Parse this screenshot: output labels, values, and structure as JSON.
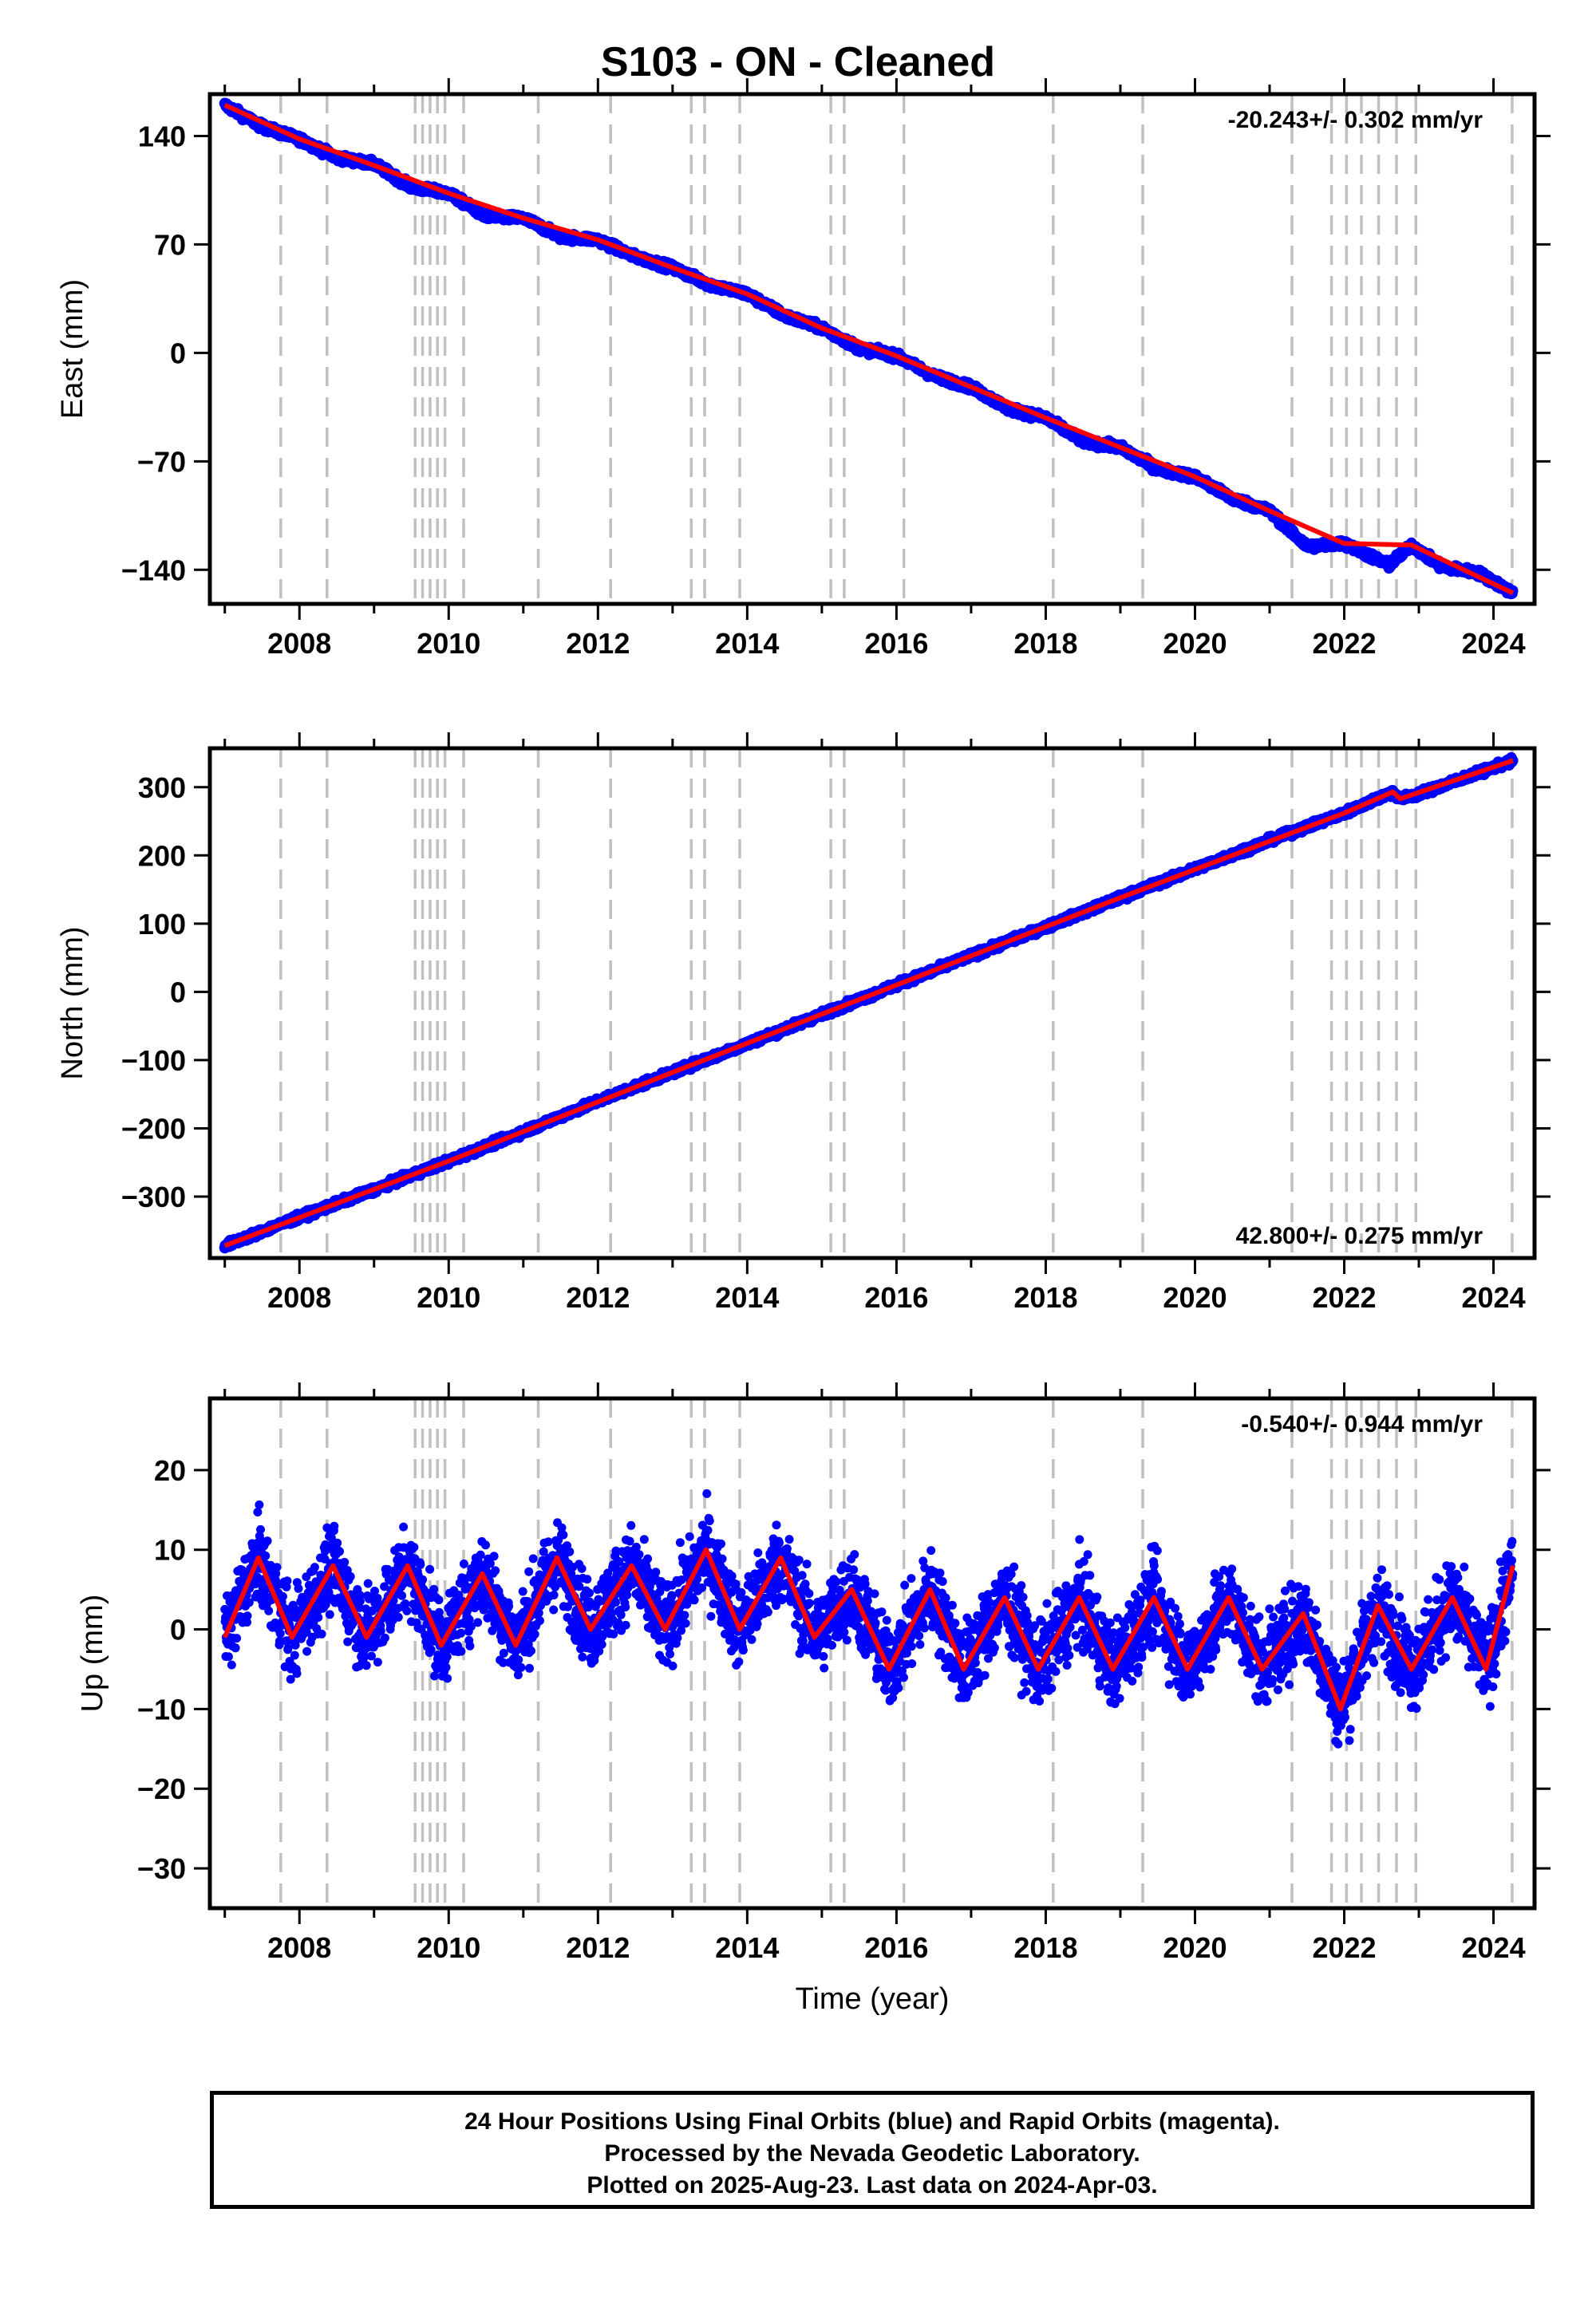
{
  "title": "S103  - ON - Cleaned",
  "footer": {
    "line1": "24 Hour Positions Using Final Orbits (blue) and Rapid Orbits (magenta).",
    "line2": "Processed by the Nevada Geodetic Laboratory.",
    "line3": "Plotted on 2025-Aug-23. Last data on 2024-Apr-03."
  },
  "colors": {
    "data": "#0000ff",
    "model": "#ff0000",
    "events": "#c0c0c0",
    "frame": "#000000"
  },
  "chart_data": [
    {
      "type": "scatter",
      "ylabel": "East (mm)",
      "rate_text": "-20.243+/- 0.302 mm/yr",
      "rate_position": "top-right",
      "xlim": [
        2006.8,
        2024.55
      ],
      "ylim": [
        -162,
        167
      ],
      "yticks": [
        -140,
        -70,
        0,
        70,
        140
      ],
      "yticklabels": [
        "−140",
        "−70",
        "0",
        "70",
        "140"
      ],
      "xticks": [
        2008,
        2010,
        2012,
        2014,
        2016,
        2018,
        2020,
        2022,
        2024
      ],
      "xticklabels": [
        "2008",
        "2010",
        "2012",
        "2014",
        "2016",
        "2018",
        "2020",
        "2022",
        "2024"
      ],
      "series": [
        {
          "values": [
            [
              2007.0,
              160
            ],
            [
              2007.5,
              146
            ],
            [
              2008.0,
              138
            ],
            [
              2008.5,
              126
            ],
            [
              2009.0,
              122
            ],
            [
              2009.5,
              107
            ],
            [
              2010.0,
              103
            ],
            [
              2010.5,
              88
            ],
            [
              2011.0,
              87
            ],
            [
              2011.5,
              75
            ],
            [
              2012.0,
              73
            ],
            [
              2012.5,
              62
            ],
            [
              2013.0,
              55
            ],
            [
              2013.5,
              44
            ],
            [
              2014.0,
              38
            ],
            [
              2014.5,
              24
            ],
            [
              2015.0,
              16
            ],
            [
              2015.5,
              3
            ],
            [
              2016.0,
              -2
            ],
            [
              2016.5,
              -15
            ],
            [
              2017.0,
              -22
            ],
            [
              2017.5,
              -36
            ],
            [
              2018.0,
              -42
            ],
            [
              2018.5,
              -57
            ],
            [
              2019.0,
              -61
            ],
            [
              2019.5,
              -75
            ],
            [
              2020.0,
              -80
            ],
            [
              2020.5,
              -94
            ],
            [
              2021.0,
              -102
            ],
            [
              2021.5,
              -125
            ],
            [
              2022.0,
              -123
            ],
            [
              2022.6,
              -137
            ],
            [
              2022.9,
              -124
            ],
            [
              2023.3,
              -138
            ],
            [
              2023.8,
              -142
            ],
            [
              2024.26,
              -155
            ]
          ]
        },
        {
          "values": [
            [
              2007.0,
              160
            ],
            [
              2008.0,
              138
            ],
            [
              2009.0,
              121
            ],
            [
              2010.0,
              103
            ],
            [
              2011.0,
              87
            ],
            [
              2012.0,
              73
            ],
            [
              2013.0,
              55
            ],
            [
              2014.0,
              38
            ],
            [
              2015.0,
              16
            ],
            [
              2016.0,
              -2
            ],
            [
              2017.0,
              -22
            ],
            [
              2018.0,
              -42
            ],
            [
              2019.0,
              -61
            ],
            [
              2020.0,
              -80
            ],
            [
              2021.0,
              -102
            ],
            [
              2022.0,
              -123
            ],
            [
              2022.9,
              -124
            ],
            [
              2024.26,
              -155
            ]
          ]
        }
      ]
    },
    {
      "type": "scatter",
      "ylabel": "North (mm)",
      "rate_text": "42.800+/- 0.275 mm/yr",
      "rate_position": "bottom-right",
      "xlim": [
        2006.8,
        2024.55
      ],
      "ylim": [
        -390,
        357
      ],
      "yticks": [
        -300,
        -200,
        -100,
        0,
        100,
        200,
        300
      ],
      "yticklabels": [
        "−300",
        "−200",
        "−100",
        "0",
        "100",
        "200",
        "300"
      ],
      "xticks": [
        2008,
        2010,
        2012,
        2014,
        2016,
        2018,
        2020,
        2022,
        2024
      ],
      "xticklabels": [
        "2008",
        "2010",
        "2012",
        "2014",
        "2016",
        "2018",
        "2020",
        "2022",
        "2024"
      ],
      "series": [
        {
          "values": [
            [
              2007.0,
              -372
            ],
            [
              2008.0,
              -330
            ],
            [
              2009.0,
              -290
            ],
            [
              2010.0,
              -248
            ],
            [
              2011.0,
              -205
            ],
            [
              2012.0,
              -160
            ],
            [
              2013.0,
              -118
            ],
            [
              2014.0,
              -76
            ],
            [
              2015.0,
              -33
            ],
            [
              2016.0,
              10
            ],
            [
              2017.0,
              53
            ],
            [
              2018.0,
              95
            ],
            [
              2019.0,
              138
            ],
            [
              2020.0,
              180
            ],
            [
              2021.0,
              222
            ],
            [
              2022.0,
              262
            ],
            [
              2022.65,
              293
            ],
            [
              2022.75,
              283
            ],
            [
              2023.0,
              290
            ],
            [
              2024.26,
              339
            ]
          ]
        },
        {
          "values": [
            [
              2007.0,
              -372
            ],
            [
              2010.0,
              -248
            ],
            [
              2013.0,
              -118
            ],
            [
              2016.0,
              10
            ],
            [
              2019.0,
              138
            ],
            [
              2022.0,
              262
            ],
            [
              2022.65,
              293
            ],
            [
              2022.75,
              283
            ],
            [
              2024.26,
              339
            ]
          ]
        }
      ]
    },
    {
      "type": "scatter",
      "ylabel": "Up (mm)",
      "xlabel": "Time (year)",
      "rate_text": "-0.540+/- 0.944 mm/yr",
      "rate_position": "top-right",
      "xlim": [
        2006.8,
        2024.55
      ],
      "ylim": [
        -35,
        29
      ],
      "yticks": [
        -30,
        -20,
        -10,
        0,
        10,
        20
      ],
      "yticklabels": [
        "−30",
        "−20",
        "−10",
        "0",
        "10",
        "20"
      ],
      "xticks": [
        2008,
        2010,
        2012,
        2014,
        2016,
        2018,
        2020,
        2022,
        2024
      ],
      "xticklabels": [
        "2008",
        "2010",
        "2012",
        "2014",
        "2016",
        "2018",
        "2020",
        "2022",
        "2024"
      ],
      "series": [
        {
          "values": [
            [
              2007.0,
              -1
            ],
            [
              2007.45,
              9
            ],
            [
              2007.9,
              -1
            ],
            [
              2008.45,
              8
            ],
            [
              2008.9,
              -1
            ],
            [
              2009.45,
              8
            ],
            [
              2009.9,
              -2
            ],
            [
              2010.45,
              7
            ],
            [
              2010.9,
              -2
            ],
            [
              2011.45,
              9
            ],
            [
              2011.9,
              0
            ],
            [
              2012.45,
              8
            ],
            [
              2012.9,
              0
            ],
            [
              2013.45,
              10
            ],
            [
              2013.9,
              0
            ],
            [
              2014.45,
              9
            ],
            [
              2014.9,
              -1
            ],
            [
              2015.4,
              5
            ],
            [
              2015.9,
              -5
            ],
            [
              2016.45,
              5
            ],
            [
              2016.9,
              -5
            ],
            [
              2017.45,
              4
            ],
            [
              2017.9,
              -5
            ],
            [
              2018.45,
              4
            ],
            [
              2018.9,
              -5
            ],
            [
              2019.45,
              4
            ],
            [
              2019.9,
              -5
            ],
            [
              2020.45,
              4
            ],
            [
              2020.9,
              -5
            ],
            [
              2021.45,
              2
            ],
            [
              2021.95,
              -10
            ],
            [
              2022.45,
              3
            ],
            [
              2022.9,
              -5
            ],
            [
              2023.45,
              4
            ],
            [
              2023.9,
              -5
            ],
            [
              2024.26,
              8
            ]
          ]
        },
        {
          "values": [
            [
              2007.0,
              -1
            ],
            [
              2007.45,
              9
            ],
            [
              2007.9,
              -1
            ],
            [
              2008.45,
              8
            ],
            [
              2008.9,
              -1
            ],
            [
              2009.45,
              8
            ],
            [
              2009.9,
              -2
            ],
            [
              2010.45,
              7
            ],
            [
              2010.9,
              -2
            ],
            [
              2011.45,
              9
            ],
            [
              2011.9,
              0
            ],
            [
              2012.45,
              8
            ],
            [
              2012.9,
              0
            ],
            [
              2013.45,
              10
            ],
            [
              2013.9,
              0
            ],
            [
              2014.45,
              9
            ],
            [
              2014.9,
              -1
            ],
            [
              2015.4,
              5
            ],
            [
              2015.9,
              -5
            ],
            [
              2016.45,
              5
            ],
            [
              2016.9,
              -5
            ],
            [
              2017.45,
              4
            ],
            [
              2017.9,
              -5
            ],
            [
              2018.45,
              4
            ],
            [
              2018.9,
              -5
            ],
            [
              2019.45,
              4
            ],
            [
              2019.9,
              -5
            ],
            [
              2020.45,
              4
            ],
            [
              2020.9,
              -5
            ],
            [
              2021.45,
              2
            ],
            [
              2021.95,
              -10
            ],
            [
              2022.45,
              3
            ],
            [
              2022.9,
              -5
            ],
            [
              2023.45,
              4
            ],
            [
              2023.9,
              -5
            ],
            [
              2024.26,
              8
            ]
          ]
        }
      ]
    }
  ],
  "event_lines": [
    2007.75,
    2008.37,
    2009.55,
    2009.65,
    2009.75,
    2009.85,
    2009.95,
    2010.2,
    2011.2,
    2012.17,
    2013.25,
    2013.43,
    2013.9,
    2015.12,
    2015.3,
    2016.1,
    2018.1,
    2019.3,
    2021.3,
    2021.83,
    2022.03,
    2022.23,
    2022.46,
    2022.7,
    2022.96,
    2024.25
  ]
}
